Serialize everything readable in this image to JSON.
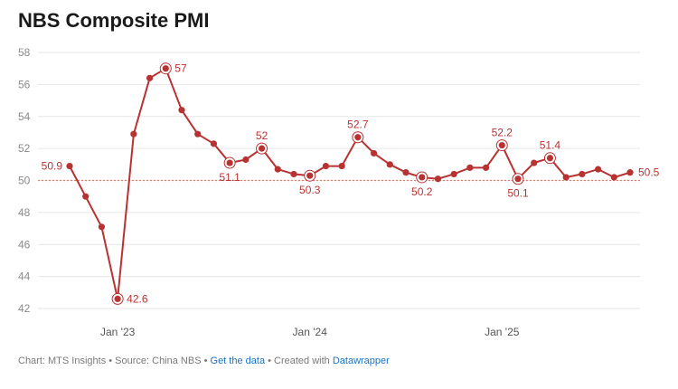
{
  "title": "NBS Composite PMI",
  "footer": {
    "prefix": "Chart: MTS Insights • Source: China NBS • ",
    "get_data": "Get the data",
    "mid": " • Created with ",
    "tool": "Datawrapper"
  },
  "chart_data": {
    "type": "line",
    "title": "NBS Composite PMI",
    "xlabel": "",
    "ylabel": "",
    "ylim": [
      42,
      58
    ],
    "yticks": [
      42,
      44,
      46,
      48,
      50,
      52,
      54,
      56,
      58
    ],
    "reference_line": 50,
    "grid": true,
    "x_ticks": [
      {
        "label": "Jan '23",
        "index": 3
      },
      {
        "label": "Jan '24",
        "index": 15
      },
      {
        "label": "Jan '25",
        "index": 27
      }
    ],
    "colors": {
      "line": "#b83232",
      "reference": "#d9826b",
      "grid": "#e6e6e6"
    },
    "series": [
      {
        "values": [
          50.9,
          49.0,
          47.1,
          42.6,
          52.9,
          56.4,
          57.0,
          54.4,
          52.9,
          52.3,
          51.1,
          51.3,
          52.0,
          50.7,
          50.4,
          50.3,
          50.9,
          50.9,
          52.7,
          51.7,
          51.0,
          50.5,
          50.2,
          50.1,
          50.4,
          50.8,
          50.8,
          52.2,
          50.1,
          51.1,
          51.4,
          50.2,
          50.4,
          50.7,
          50.2,
          50.5
        ]
      }
    ],
    "annotations": [
      {
        "index": 0,
        "text": "50.9"
      },
      {
        "index": 3,
        "text": "42.6"
      },
      {
        "index": 6,
        "text": "57"
      },
      {
        "index": 10,
        "text": "51.1"
      },
      {
        "index": 12,
        "text": "52"
      },
      {
        "index": 15,
        "text": "50.3"
      },
      {
        "index": 18,
        "text": "52.7"
      },
      {
        "index": 22,
        "text": "50.2"
      },
      {
        "index": 27,
        "text": "52.2"
      },
      {
        "index": 28,
        "text": "50.1"
      },
      {
        "index": 30,
        "text": "51.4"
      },
      {
        "index": 35,
        "text": "50.5"
      }
    ]
  }
}
